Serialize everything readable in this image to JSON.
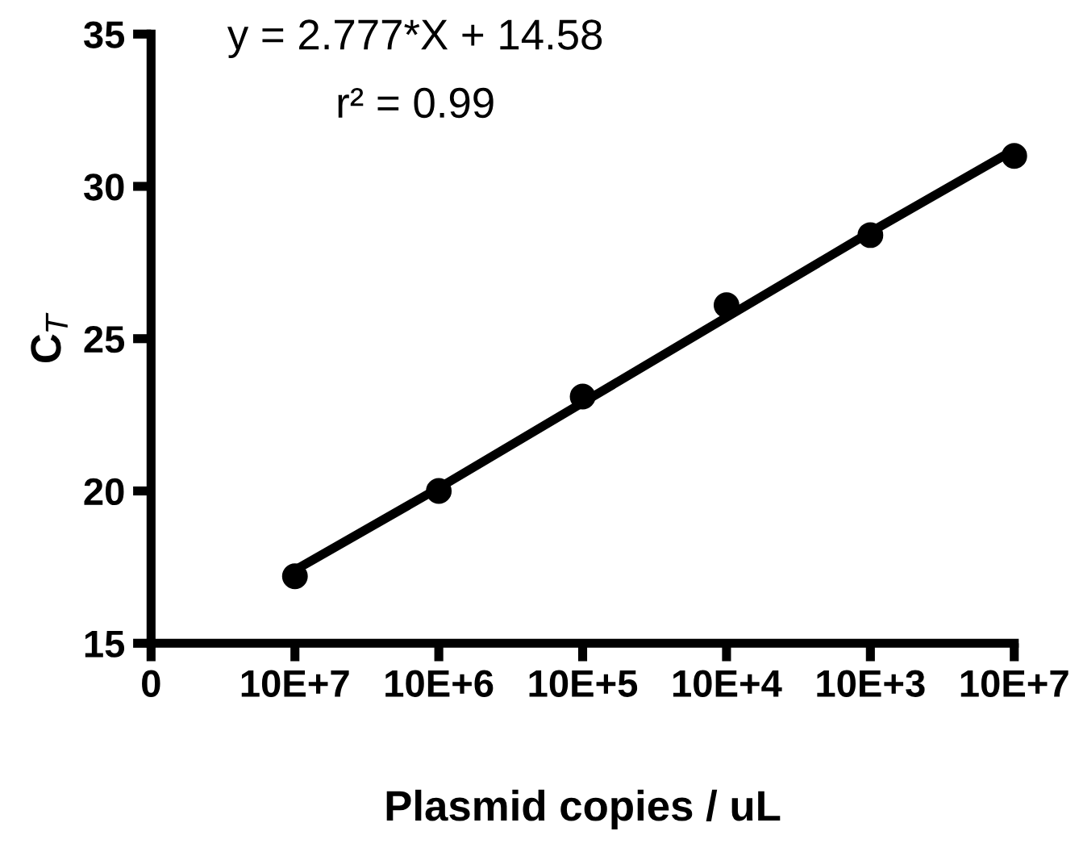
{
  "chart_data": {
    "type": "scatter",
    "xlabel": "Plasmid copies / uL",
    "ylabel": "C$_{T}$",
    "annotations": [
      "y = 2.777*X + 14.58",
      "r² = 0.99"
    ],
    "categories": [
      "0",
      "10E+7",
      "10E+6",
      "10E+5",
      "10E+4",
      "10E+3",
      "10E+7"
    ],
    "series": [
      {
        "color": "#000000",
        "marker": "circle",
        "values": [
          null,
          17.2,
          20.0,
          23.1,
          26.1,
          28.4,
          31.0
        ]
      },
      {
        "type": "line",
        "color": "#000000",
        "marker": "none",
        "line_style": "solid",
        "values": [
          null,
          17.4,
          20.1,
          22.9,
          25.7,
          28.5,
          31.2
        ]
      }
    ],
    "ylim": [
      15,
      35
    ],
    "yticks": [
      15,
      20,
      25,
      30,
      35
    ],
    "grid": false,
    "legend": false
  }
}
